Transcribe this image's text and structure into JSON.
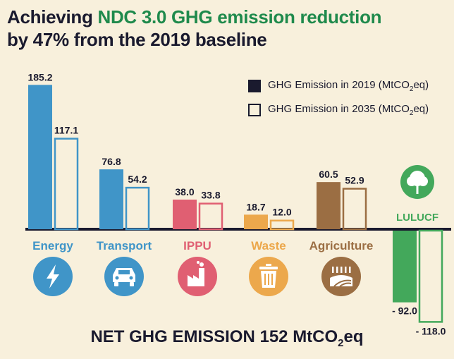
{
  "title": {
    "part1": "Achieving ",
    "highlight": "NDC 3.0 GHG emission reduction",
    "line2": "by 47% from the 2019 baseline"
  },
  "legend": {
    "item_2019": {
      "pre": "GHG Emission in 2019 (MtCO",
      "sub": "2",
      "post": "eq)"
    },
    "item_2035": {
      "pre": "GHG Emission in 2035 (MtCO",
      "sub": "2",
      "post": "eq)"
    }
  },
  "footer": {
    "pre": "NET GHG EMISSION 152 MtCO",
    "sub": "2",
    "post": "eq"
  },
  "colors": {
    "energy": "#4095c8",
    "transport": "#4095c8",
    "ippu": "#e05f72",
    "waste": "#eca84c",
    "agriculture": "#9b6e43",
    "lulucf": "#43a85b",
    "text": "#1a1a2e"
  },
  "chart_data": {
    "type": "bar",
    "categories": [
      "Energy",
      "Transport",
      "IPPU",
      "Waste",
      "Agriculture",
      "LULUCF"
    ],
    "series": [
      {
        "name": "GHG Emission in 2019 (MtCO2eq)",
        "values": [
          185.2,
          76.8,
          38.0,
          18.7,
          60.5,
          -92.0
        ],
        "labels": [
          "185.2",
          "76.8",
          "38.0",
          "18.7",
          "60.5",
          "- 92.0"
        ]
      },
      {
        "name": "GHG Emission in 2035 (MtCO2eq)",
        "values": [
          117.1,
          54.2,
          33.8,
          12.0,
          52.9,
          -118.0
        ],
        "labels": [
          "117.1",
          "54.2",
          "33.8",
          "12.0",
          "52.9",
          "- 118.0"
        ]
      }
    ],
    "icons": [
      "lightning-icon",
      "car-icon",
      "factory-icon",
      "trash-bin-icon",
      "field-icon",
      "tree-icon"
    ],
    "legend_position": "top-right",
    "grid": false
  }
}
